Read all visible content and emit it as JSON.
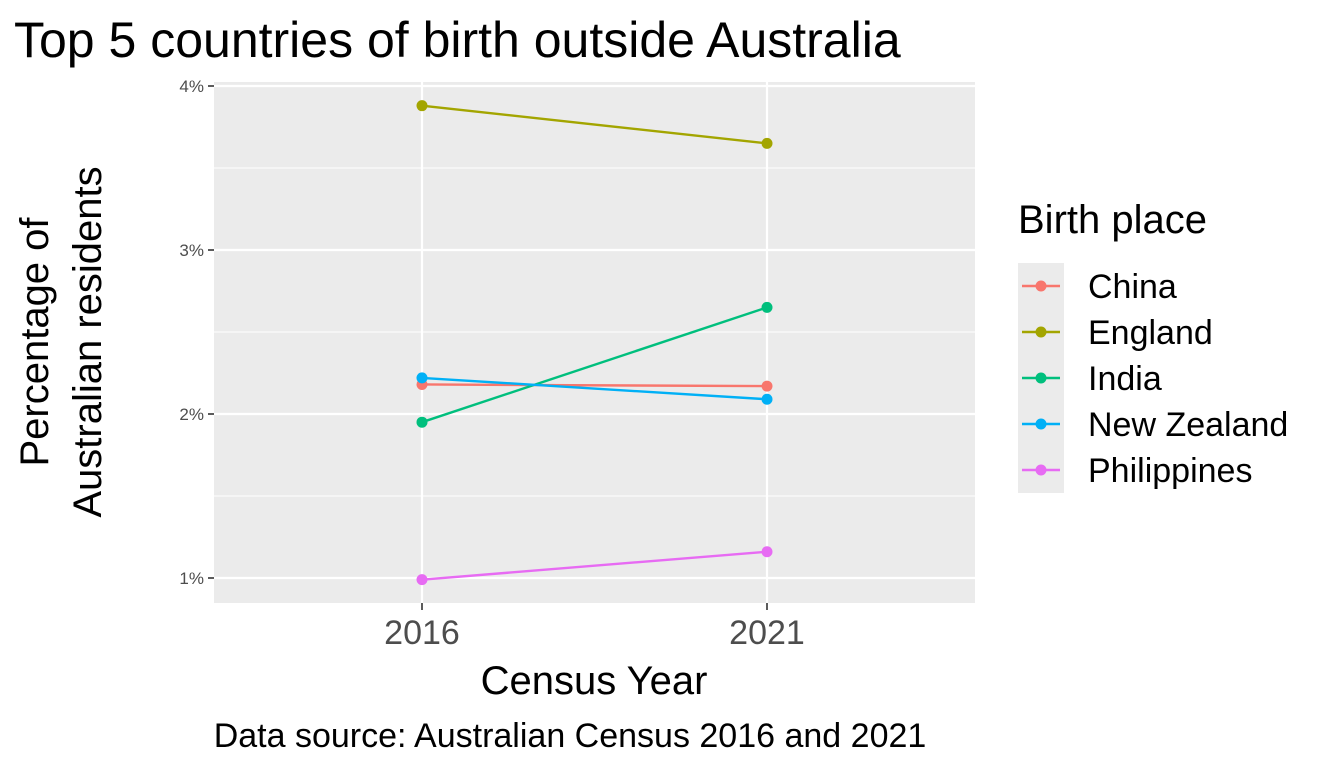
{
  "chart_data": {
    "type": "line",
    "title": "Top 5 countries of birth outside Australia",
    "xlabel": "Census Year",
    "ylabel": [
      "Percentage of",
      "Australian residents"
    ],
    "caption": "Data source: Australian Census 2016 and 2021",
    "x": [
      "2016",
      "2021"
    ],
    "y_ticks": [
      "1%",
      "2%",
      "3%",
      "4%"
    ],
    "ylim": [
      0.85,
      4.0
    ],
    "grid": true,
    "legend": {
      "title": "Birth place",
      "position": "right"
    },
    "series": [
      {
        "name": "China",
        "color": "#F8766D",
        "values": [
          2.18,
          2.17
        ]
      },
      {
        "name": "England",
        "color": "#A3A500",
        "values": [
          3.88,
          3.65
        ]
      },
      {
        "name": "India",
        "color": "#00BF7D",
        "values": [
          1.95,
          2.65
        ]
      },
      {
        "name": "New Zealand",
        "color": "#00B0F6",
        "values": [
          2.22,
          2.09
        ]
      },
      {
        "name": "Philippines",
        "color": "#E76BF3",
        "values": [
          0.99,
          1.16
        ]
      }
    ]
  }
}
